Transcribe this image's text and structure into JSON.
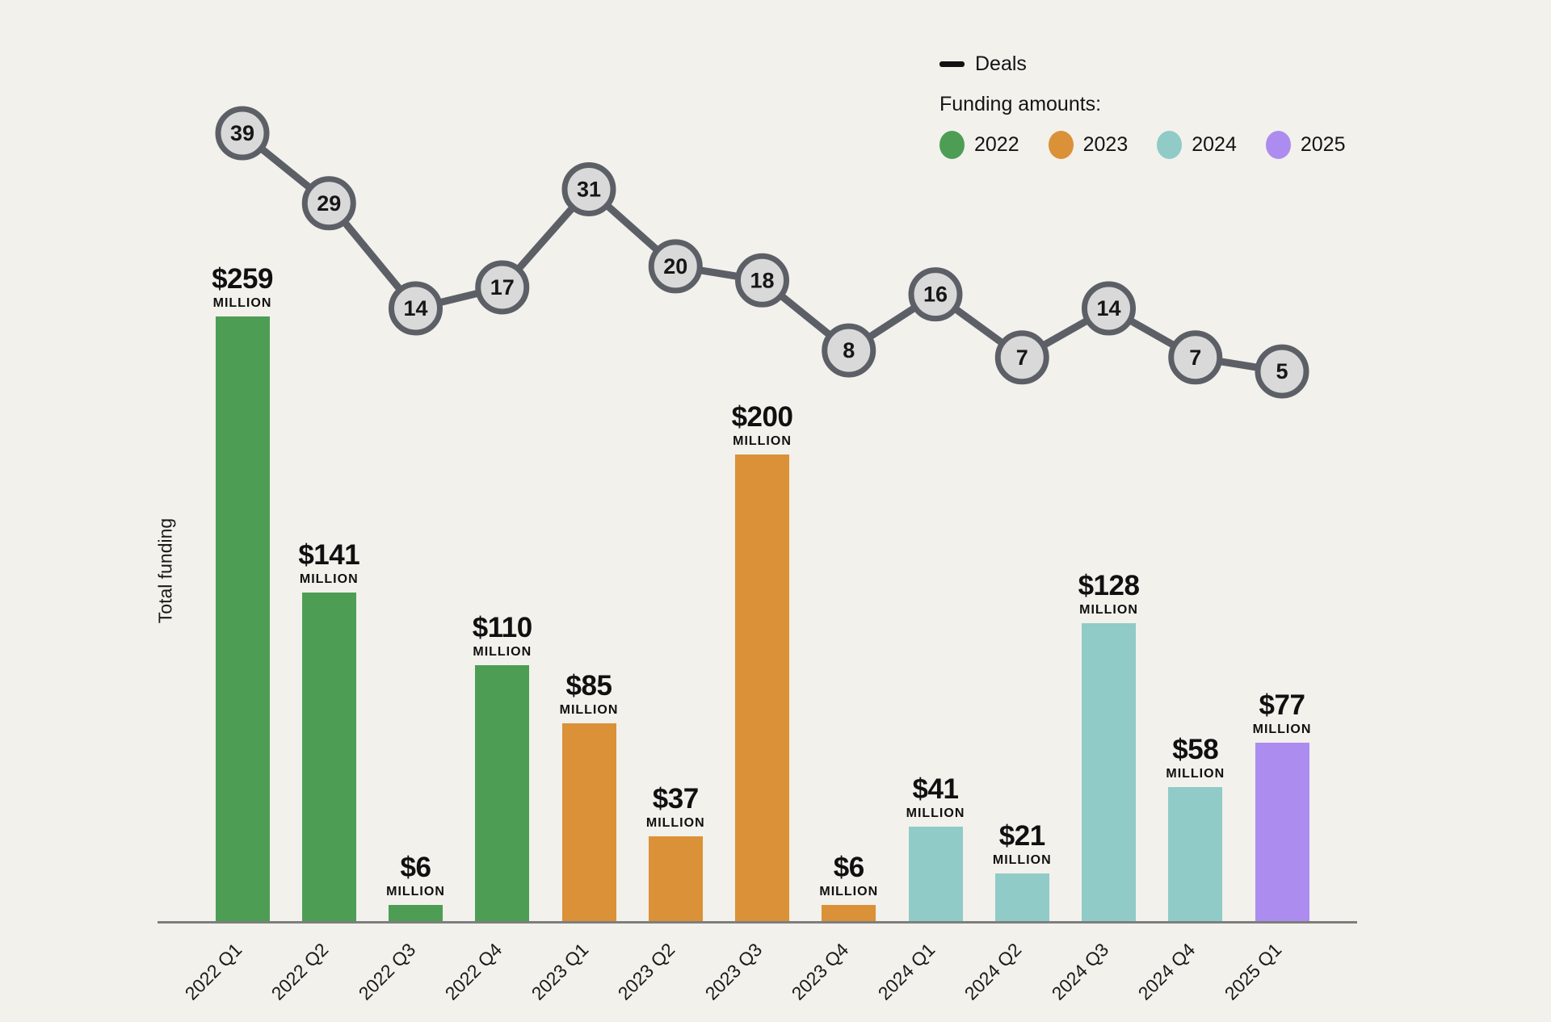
{
  "legend": {
    "deals_label": "Deals",
    "funding_label": "Funding amounts:",
    "years": [
      {
        "label": "2022",
        "color": "#4d9e54"
      },
      {
        "label": "2023",
        "color": "#db9137"
      },
      {
        "label": "2024",
        "color": "#90cbc7"
      },
      {
        "label": "2025",
        "color": "#ad8cf0"
      }
    ]
  },
  "y_axis_label": "Total funding",
  "chart_data": {
    "type": "bar",
    "subtype": "bar-plus-line-combo",
    "title": "",
    "xlabel": "",
    "ylabel": "Total funding",
    "grid": false,
    "legend_position": "top-right",
    "categories": [
      "2022 Q1",
      "2022 Q2",
      "2022 Q3",
      "2022 Q4",
      "2023 Q1",
      "2023 Q2",
      "2023 Q3",
      "2023 Q4",
      "2024 Q1",
      "2024 Q2",
      "2024 Q3",
      "2024 Q4",
      "2025 Q1"
    ],
    "series": [
      {
        "name": "Funding amounts",
        "type": "bar",
        "unit": "USD millions",
        "values": [
          259,
          141,
          6,
          110,
          85,
          37,
          200,
          6,
          41,
          21,
          128,
          58,
          77
        ],
        "value_labels": [
          "$259",
          "$141",
          "$6",
          "$110",
          "$85",
          "$37",
          "$200",
          "$6",
          "$41",
          "$21",
          "$128",
          "$58",
          "$77"
        ],
        "value_sublabel": "MILLION",
        "colors_by_year": {
          "2022": "#4d9e54",
          "2023": "#db9137",
          "2024": "#90cbc7",
          "2025": "#ad8cf0"
        }
      },
      {
        "name": "Deals",
        "type": "line",
        "values": [
          39,
          29,
          14,
          17,
          31,
          20,
          18,
          8,
          16,
          7,
          14,
          7,
          5
        ],
        "line_color": "#5c6066",
        "marker_fill": "#d9d9d9",
        "marker_border": "#5c6066"
      }
    ]
  },
  "colors": {
    "background": "#f2f1ec",
    "text": "#141414",
    "axis": "#7e7e7e"
  }
}
